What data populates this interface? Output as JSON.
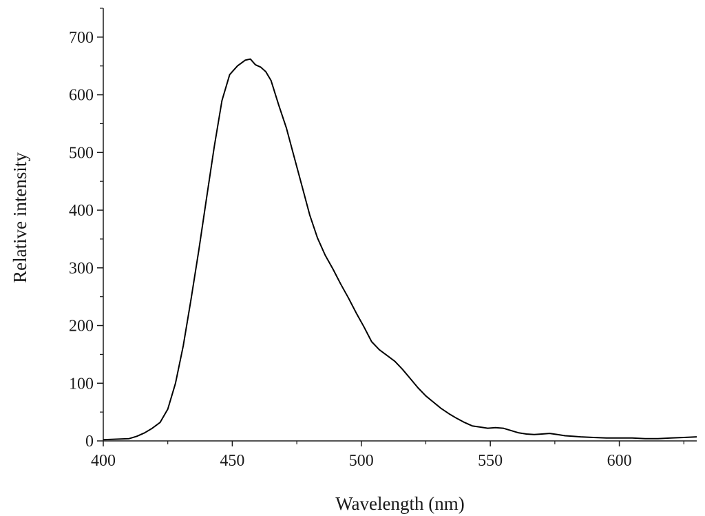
{
  "chart_data": {
    "type": "line",
    "title": "",
    "xlabel": "Wavelength (nm)",
    "ylabel": "Relative intensity",
    "xlim": [
      400,
      630
    ],
    "ylim": [
      0,
      750
    ],
    "x_ticks": [
      400,
      450,
      500,
      550,
      600
    ],
    "y_ticks": [
      0,
      100,
      200,
      300,
      400,
      500,
      600,
      700
    ],
    "grid": false,
    "legend": "none",
    "line_color": "#000000",
    "series": [
      {
        "x": [
          400,
          405,
          410,
          413,
          416,
          419,
          422,
          425,
          428,
          431,
          434,
          437,
          440,
          443,
          446,
          449,
          452,
          455,
          457,
          459,
          461,
          463,
          465,
          468,
          471,
          474,
          477,
          480,
          483,
          486,
          489,
          492,
          495,
          498,
          501,
          504,
          507,
          510,
          513,
          516,
          519,
          522,
          525,
          528,
          531,
          534,
          537,
          540,
          543,
          546,
          549,
          552,
          555,
          558,
          561,
          564,
          567,
          570,
          573,
          576,
          579,
          582,
          585,
          590,
          595,
          600,
          605,
          610,
          615,
          620,
          625,
          630
        ],
        "y": [
          2,
          3,
          4,
          8,
          14,
          22,
          32,
          55,
          100,
          165,
          245,
          330,
          420,
          510,
          590,
          635,
          650,
          660,
          662,
          652,
          648,
          640,
          625,
          582,
          542,
          492,
          442,
          392,
          352,
          322,
          298,
          272,
          248,
          222,
          198,
          172,
          158,
          148,
          138,
          124,
          108,
          92,
          78,
          67,
          56,
          47,
          39,
          32,
          26,
          24,
          22,
          23,
          22,
          18,
          14,
          12,
          11,
          12,
          13,
          11,
          9,
          8,
          7,
          6,
          5,
          5,
          5,
          4,
          4,
          5,
          6,
          7
        ]
      }
    ]
  }
}
